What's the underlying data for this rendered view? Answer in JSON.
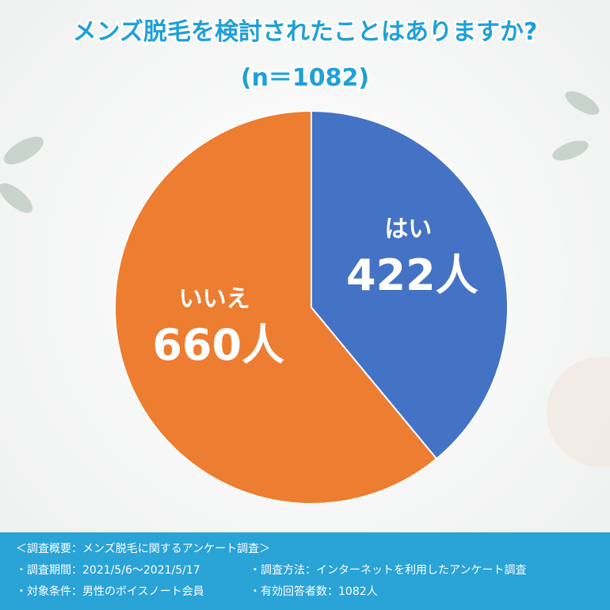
{
  "chart_data": {
    "type": "pie",
    "title": "メンズ脱毛を検討されたことはありますか?",
    "subtitle": "(n＝1082)",
    "categories": [
      "はい",
      "いいえ"
    ],
    "values": [
      422,
      660
    ],
    "value_labels": [
      "422人",
      "660人"
    ],
    "colors": [
      "#4472c4",
      "#ed7d31"
    ]
  },
  "footer": {
    "heading": "＜調査概要：メンズ脱毛に関するアンケート調査＞",
    "items": [
      "・調査期間：2021/5/6〜2021/5/17",
      "・調査方法：インターネットを利用したアンケート調査",
      "・対象条件：男性のボイスノート会員",
      "・有効回答者数：1082人"
    ]
  }
}
